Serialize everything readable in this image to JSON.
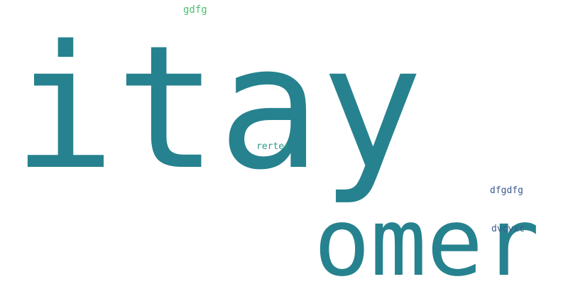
{
  "words": {
    "itay": {
      "text": "itay",
      "color": "#26828e"
    },
    "omer": {
      "text": "omer",
      "color": "#26828e"
    },
    "gdfg": {
      "text": "gdfg",
      "color": "#4ac16d"
    },
    "rerter": {
      "text": "rerter",
      "color": "#2a9c87"
    },
    "dfgdfg": {
      "text": "dfgdfg",
      "color": "#3b5a8c"
    },
    "dvcvxc": {
      "text": "dvcvxc",
      "color": "#3b5a8c"
    }
  }
}
